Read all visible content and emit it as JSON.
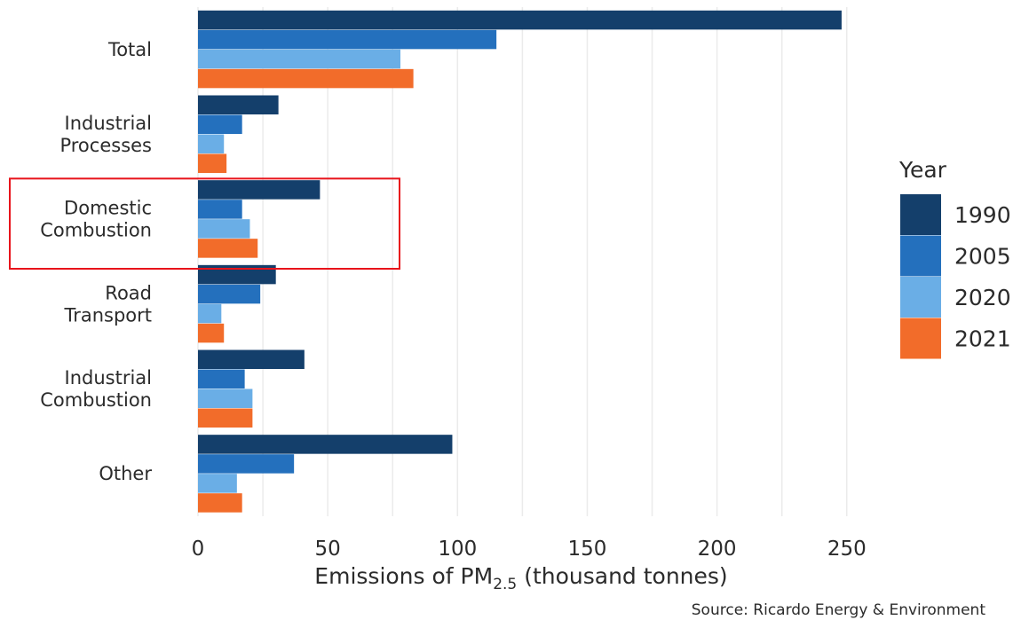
{
  "chart_data": {
    "type": "bar",
    "orientation": "horizontal",
    "categories": [
      "Total",
      "Industrial\nProcesses",
      "Domestic\nCombustion",
      "Road\nTransport",
      "Industrial\nCombustion",
      "Other"
    ],
    "series": [
      {
        "name": "1990",
        "color": "#143f6b",
        "values": [
          248,
          31,
          47,
          30,
          41,
          98
        ]
      },
      {
        "name": "2005",
        "color": "#2470bd",
        "values": [
          115,
          17,
          17,
          24,
          18,
          37
        ]
      },
      {
        "name": "2020",
        "color": "#6aaee6",
        "values": [
          78,
          10,
          20,
          9,
          21,
          15
        ]
      },
      {
        "name": "2021",
        "color": "#f26c2a",
        "values": [
          83,
          11,
          23,
          10,
          21,
          17
        ]
      }
    ],
    "xlabel_main": "Emissions of PM",
    "xlabel_sub": "2.5",
    "xlabel_rest": " (thousand tonnes)",
    "xticks": [
      "0",
      "50",
      "100",
      "150",
      "200",
      "250"
    ],
    "xlim": [
      0,
      260
    ],
    "legend_title": "Year",
    "legend_position": "right",
    "grid": "vertical",
    "source": "Source: Ricardo Energy & Environment",
    "highlighted_category": "Domestic\nCombustion",
    "highlight_color": "#e8141b"
  }
}
